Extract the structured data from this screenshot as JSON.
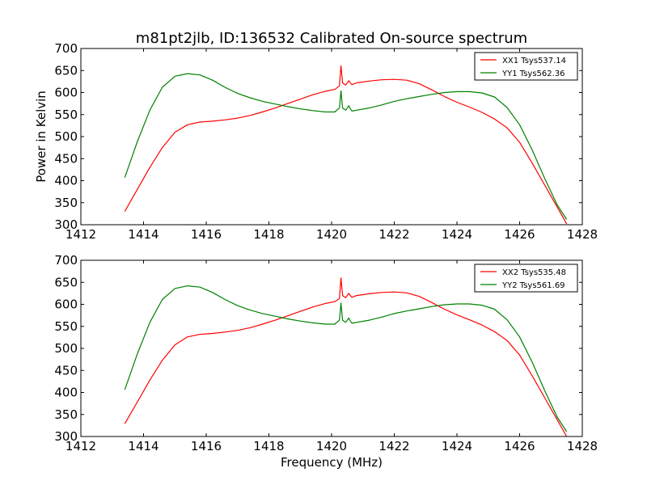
{
  "chart_data": [
    {
      "type": "line",
      "title": "m81pt2jlb, ID:136532 Calibrated On-source spectrum",
      "xlabel": "",
      "ylabel": "Power in Kelvin",
      "xlim": [
        1412,
        1428
      ],
      "ylim": [
        300,
        700
      ],
      "xticks": [
        "1412",
        "1414",
        "1416",
        "1418",
        "1420",
        "1422",
        "1424",
        "1426",
        "1428"
      ],
      "yticks": [
        "300",
        "350",
        "400",
        "450",
        "500",
        "550",
        "600",
        "650",
        "700"
      ],
      "grid": false,
      "legend_position": "top-right",
      "series": [
        {
          "name": "XX1 Tsys537.14",
          "color": "#ff0000",
          "x": [
            1413.4,
            1413.8,
            1414.2,
            1414.6,
            1415.0,
            1415.4,
            1415.8,
            1416.2,
            1416.6,
            1417.0,
            1417.4,
            1417.8,
            1418.2,
            1418.6,
            1419.0,
            1419.4,
            1419.8,
            1420.1,
            1420.25,
            1420.3,
            1420.35,
            1420.45,
            1420.55,
            1420.6,
            1420.65,
            1420.8,
            1421.2,
            1421.6,
            1422.0,
            1422.4,
            1422.8,
            1423.2,
            1423.6,
            1424.0,
            1424.4,
            1424.8,
            1425.2,
            1425.6,
            1426.0,
            1426.4,
            1426.8,
            1427.2,
            1427.5
          ],
          "y": [
            330,
            380,
            430,
            475,
            510,
            527,
            533,
            535,
            538,
            542,
            548,
            556,
            565,
            575,
            585,
            595,
            603,
            607,
            615,
            661,
            622,
            617,
            627,
            622,
            618,
            622,
            626,
            629,
            630,
            628,
            620,
            606,
            591,
            578,
            567,
            555,
            540,
            520,
            487,
            440,
            390,
            340,
            302
          ]
        },
        {
          "name": "YY1 Tsys562.36",
          "color": "#008000",
          "x": [
            1413.4,
            1413.8,
            1414.2,
            1414.6,
            1415.0,
            1415.4,
            1415.8,
            1416.2,
            1416.6,
            1417.0,
            1417.4,
            1417.8,
            1418.2,
            1418.6,
            1419.0,
            1419.4,
            1419.8,
            1420.1,
            1420.25,
            1420.3,
            1420.35,
            1420.45,
            1420.55,
            1420.6,
            1420.65,
            1420.8,
            1421.2,
            1421.6,
            1422.0,
            1422.4,
            1422.8,
            1423.2,
            1423.6,
            1424.0,
            1424.4,
            1424.8,
            1425.2,
            1425.6,
            1426.0,
            1426.4,
            1426.8,
            1427.2,
            1427.5
          ],
          "y": [
            407,
            488,
            560,
            612,
            637,
            643,
            640,
            628,
            612,
            598,
            588,
            580,
            574,
            568,
            563,
            559,
            556,
            556,
            565,
            604,
            565,
            560,
            570,
            563,
            558,
            560,
            565,
            572,
            580,
            586,
            591,
            596,
            600,
            602,
            602,
            599,
            590,
            566,
            527,
            470,
            405,
            345,
            312
          ]
        }
      ]
    },
    {
      "type": "line",
      "title": "",
      "xlabel": "Frequency (MHz)",
      "ylabel": "",
      "xlim": [
        1412,
        1428
      ],
      "ylim": [
        300,
        700
      ],
      "xticks": [
        "1412",
        "1414",
        "1416",
        "1418",
        "1420",
        "1422",
        "1424",
        "1426",
        "1428"
      ],
      "yticks": [
        "300",
        "350",
        "400",
        "450",
        "500",
        "550",
        "600",
        "650",
        "700"
      ],
      "grid": false,
      "legend_position": "top-right",
      "series": [
        {
          "name": "XX2 Tsys535.48",
          "color": "#ff0000",
          "x": [
            1413.4,
            1413.8,
            1414.2,
            1414.6,
            1415.0,
            1415.4,
            1415.8,
            1416.2,
            1416.6,
            1417.0,
            1417.4,
            1417.8,
            1418.2,
            1418.6,
            1419.0,
            1419.4,
            1419.8,
            1420.1,
            1420.25,
            1420.3,
            1420.35,
            1420.45,
            1420.55,
            1420.6,
            1420.65,
            1420.8,
            1421.2,
            1421.6,
            1422.0,
            1422.4,
            1422.8,
            1423.2,
            1423.6,
            1424.0,
            1424.4,
            1424.8,
            1425.2,
            1425.6,
            1426.0,
            1426.4,
            1426.8,
            1427.2,
            1427.5
          ],
          "y": [
            329,
            378,
            428,
            473,
            508,
            526,
            532,
            534,
            537,
            541,
            547,
            555,
            564,
            574,
            584,
            594,
            602,
            606,
            613,
            660,
            620,
            615,
            625,
            620,
            616,
            620,
            624,
            627,
            628,
            626,
            618,
            604,
            589,
            576,
            565,
            553,
            538,
            518,
            485,
            438,
            388,
            338,
            300
          ]
        },
        {
          "name": "YY2 Tsys561.69",
          "color": "#008000",
          "x": [
            1413.4,
            1413.8,
            1414.2,
            1414.6,
            1415.0,
            1415.4,
            1415.8,
            1416.2,
            1416.6,
            1417.0,
            1417.4,
            1417.8,
            1418.2,
            1418.6,
            1419.0,
            1419.4,
            1419.8,
            1420.1,
            1420.25,
            1420.3,
            1420.35,
            1420.45,
            1420.55,
            1420.6,
            1420.65,
            1420.8,
            1421.2,
            1421.6,
            1422.0,
            1422.4,
            1422.8,
            1423.2,
            1423.6,
            1424.0,
            1424.4,
            1424.8,
            1425.2,
            1425.6,
            1426.0,
            1426.4,
            1426.8,
            1427.2,
            1427.5
          ],
          "y": [
            406,
            487,
            559,
            611,
            636,
            642,
            639,
            627,
            611,
            597,
            587,
            579,
            573,
            567,
            562,
            558,
            555,
            555,
            564,
            603,
            564,
            559,
            569,
            562,
            557,
            559,
            564,
            571,
            579,
            585,
            590,
            595,
            599,
            601,
            601,
            598,
            589,
            565,
            526,
            469,
            404,
            344,
            311
          ]
        }
      ]
    }
  ]
}
